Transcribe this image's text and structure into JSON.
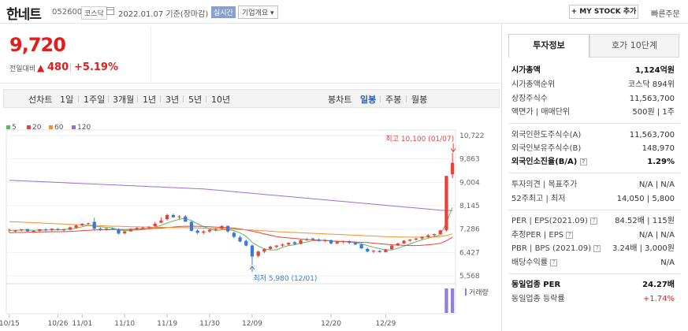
{
  "header": {
    "stock_name": "한네트",
    "stock_code": "052600",
    "market": "코스닥",
    "date_text": "2022.01.07 기준(장마감)",
    "realtime_btn": "실시간",
    "corp_info_btn": "기업개요",
    "corp_info_arrow": "▾",
    "my_stock_btn": "+ MY STOCK 추가",
    "quick_order": "빠른주문"
  },
  "price": {
    "current": "9,720",
    "prev_label": "전일대비",
    "arrow": "▲",
    "change_abs": "480",
    "change_pct": "+5.19%"
  },
  "period_tabs": {
    "line_chart": "선차트",
    "day1": "1일",
    "week1": "1주일",
    "month3": "3개월",
    "year1": "1년",
    "year3": "3년",
    "year5": "5년",
    "year10": "10년",
    "candle_chart": "봉차트",
    "daily": "일봉",
    "weekly": "주봉",
    "monthly": "월봉"
  },
  "legend": [
    {
      "label": "5",
      "color": "#5cb85c"
    },
    {
      "label": "20",
      "color": "#e8413b"
    },
    {
      "label": "60",
      "color": "#f2902e"
    },
    {
      "label": "120",
      "color": "#9b6fd0"
    }
  ],
  "chart_data": {
    "type": "candlestick",
    "y_ticks": [
      "10,722",
      "9,863",
      "9,004",
      "8,145",
      "7,286",
      "6,427",
      "5,568"
    ],
    "x_ticks": [
      "10/15",
      "10/26",
      "11/01",
      "11/10",
      "11/19",
      "11/30",
      "12/09",
      "12/20",
      "12/29"
    ],
    "high_annotation": "최고 10,100 (01/07)",
    "low_annotation": "최저 5,980 (12/01)",
    "volume_label": "거래량",
    "ylim": [
      5568,
      10722
    ],
    "up_color": "#e8413b",
    "down_color": "#3a78d8",
    "candles": [
      [
        7250,
        7300,
        7150,
        7260
      ],
      [
        7200,
        7260,
        7150,
        7240
      ],
      [
        7240,
        7280,
        7200,
        7280
      ],
      [
        7280,
        7300,
        7200,
        7200
      ],
      [
        7180,
        7240,
        7150,
        7220
      ],
      [
        7220,
        7280,
        7200,
        7280
      ],
      [
        7270,
        7320,
        7200,
        7260
      ],
      [
        7250,
        7300,
        7180,
        7300
      ],
      [
        7290,
        7320,
        7230,
        7250
      ],
      [
        7240,
        7300,
        7200,
        7270
      ],
      [
        7260,
        7380,
        7250,
        7350
      ],
      [
        7340,
        7450,
        7300,
        7420
      ],
      [
        7420,
        7500,
        7400,
        7480
      ],
      [
        7470,
        7520,
        7440,
        7500
      ],
      [
        7550,
        7700,
        7250,
        7300
      ],
      [
        7300,
        7350,
        7220,
        7260
      ],
      [
        7270,
        7320,
        7230,
        7310
      ],
      [
        7300,
        7340,
        7260,
        7280
      ],
      [
        7280,
        7320,
        7100,
        7120
      ],
      [
        7130,
        7220,
        7100,
        7200
      ],
      [
        7200,
        7310,
        7190,
        7290
      ],
      [
        7280,
        7350,
        7250,
        7330
      ],
      [
        7320,
        7380,
        7280,
        7340
      ],
      [
        7340,
        7390,
        7300,
        7370
      ],
      [
        7390,
        7550,
        7380,
        7480
      ],
      [
        7520,
        7720,
        7500,
        7600
      ],
      [
        7650,
        7850,
        7600,
        7800
      ],
      [
        7800,
        7850,
        7700,
        7720
      ],
      [
        7720,
        7800,
        7650,
        7750
      ],
      [
        7750,
        7800,
        7550,
        7560
      ],
      [
        7550,
        7580,
        7200,
        7220
      ],
      [
        7230,
        7280,
        7100,
        7150
      ],
      [
        7160,
        7240,
        7100,
        7200
      ],
      [
        7200,
        7280,
        7150,
        7260
      ],
      [
        7260,
        7320,
        7200,
        7290
      ],
      [
        7300,
        7420,
        7280,
        7400
      ],
      [
        7400,
        7420,
        7150,
        7200
      ],
      [
        7150,
        7200,
        6950,
        7000
      ],
      [
        6980,
        7050,
        6800,
        6830
      ],
      [
        6850,
        6900,
        6650,
        6680
      ],
      [
        6680,
        6720,
        5980,
        6280
      ],
      [
        6300,
        6500,
        6250,
        6460
      ],
      [
        6460,
        6580,
        6400,
        6550
      ],
      [
        6560,
        6680,
        6520,
        6640
      ],
      [
        6640,
        6700,
        6580,
        6680
      ],
      [
        6680,
        6760,
        6640,
        6720
      ],
      [
        6720,
        6800,
        6680,
        6780
      ],
      [
        6800,
        6850,
        6700,
        6740
      ],
      [
        6740,
        6900,
        6720,
        6880
      ],
      [
        6880,
        6960,
        6850,
        6920
      ],
      [
        6940,
        6970,
        6880,
        6900
      ],
      [
        6900,
        6940,
        6820,
        6850
      ],
      [
        6860,
        6920,
        6800,
        6880
      ],
      [
        6880,
        6900,
        6720,
        6760
      ],
      [
        6760,
        6850,
        6720,
        6820
      ],
      [
        6820,
        6860,
        6760,
        6840
      ],
      [
        6840,
        6880,
        6740,
        6780
      ],
      [
        6780,
        6820,
        6700,
        6720
      ],
      [
        6720,
        6760,
        6550,
        6580
      ],
      [
        6560,
        6600,
        6430,
        6460
      ],
      [
        6460,
        6520,
        6400,
        6490
      ],
      [
        6480,
        6520,
        6420,
        6440
      ],
      [
        6440,
        6560,
        6420,
        6540
      ],
      [
        6550,
        6700,
        6520,
        6680
      ],
      [
        6680,
        6780,
        6660,
        6760
      ],
      [
        6760,
        6880,
        6740,
        6860
      ],
      [
        6860,
        6920,
        6820,
        6900
      ],
      [
        6900,
        6960,
        6860,
        6940
      ],
      [
        6940,
        7020,
        6900,
        7000
      ],
      [
        7000,
        7100,
        6960,
        7060
      ],
      [
        7060,
        7120,
        6980,
        7100
      ],
      [
        7100,
        7260,
        7060,
        7240
      ],
      [
        7240,
        9240,
        7200,
        9240
      ],
      [
        9300,
        10100,
        9150,
        9720
      ]
    ],
    "ma5": [
      7240,
      7240,
      7250,
      7250,
      7240,
      7250,
      7250,
      7260,
      7260,
      7270,
      7290,
      7320,
      7370,
      7420,
      7390,
      7370,
      7350,
      7330,
      7250,
      7230,
      7240,
      7250,
      7270,
      7310,
      7360,
      7420,
      7510,
      7580,
      7650,
      7680,
      7600,
      7480,
      7380,
      7290,
      7230,
      7260,
      7270,
      7230,
      7150,
      7020,
      6800,
      6660,
      6560,
      6520,
      6520,
      6620,
      6680,
      6710,
      6770,
      6810,
      6860,
      6870,
      6880,
      6850,
      6830,
      6830,
      6810,
      6790,
      6740,
      6680,
      6620,
      6570,
      6520,
      6520,
      6580,
      6660,
      6740,
      6820,
      6890,
      6950,
      7010,
      7070,
      7520,
      8080
    ],
    "ma20": [
      7150,
      7160,
      7160,
      7170,
      7170,
      7180,
      7180,
      7190,
      7190,
      7190,
      7200,
      7210,
      7230,
      7240,
      7250,
      7260,
      7260,
      7270,
      7270,
      7270,
      7280,
      7280,
      7290,
      7300,
      7310,
      7320,
      7340,
      7360,
      7380,
      7390,
      7390,
      7390,
      7380,
      7370,
      7360,
      7350,
      7340,
      7320,
      7290,
      7250,
      7210,
      7160,
      7110,
      7060,
      7010,
      6980,
      6960,
      6940,
      6920,
      6900,
      6890,
      6880,
      6860,
      6850,
      6840,
      6830,
      6820,
      6810,
      6800,
      6790,
      6770,
      6750,
      6730,
      6710,
      6700,
      6690,
      6680,
      6680,
      6690,
      6710,
      6730,
      6760,
      6860,
      6980
    ],
    "ma60": [
      7560,
      7550,
      7540,
      7530,
      7520,
      7510,
      7500,
      7490,
      7480,
      7470,
      7460,
      7450,
      7440,
      7430,
      7420,
      7410,
      7400,
      7390,
      7390,
      7380,
      7370,
      7370,
      7360,
      7360,
      7350,
      7350,
      7350,
      7340,
      7340,
      7340,
      7330,
      7330,
      7320,
      7310,
      7310,
      7300,
      7290,
      7280,
      7270,
      7260,
      7250,
      7230,
      7220,
      7210,
      7190,
      7180,
      7170,
      7160,
      7150,
      7140,
      7130,
      7120,
      7110,
      7100,
      7090,
      7080,
      7070,
      7060,
      7050,
      7040,
      7030,
      7020,
      7010,
      7000,
      6995,
      6990,
      6990,
      6990,
      6990,
      6995,
      7000,
      7010,
      7050,
      7110
    ],
    "ma120": [
      9080,
      9070,
      9060,
      9050,
      9040,
      9030,
      9020,
      9010,
      9000,
      8990,
      8980,
      8970,
      8960,
      8950,
      8940,
      8930,
      8920,
      8910,
      8900,
      8890,
      8880,
      8870,
      8860,
      8850,
      8840,
      8830,
      8820,
      8810,
      8800,
      8790,
      8780,
      8770,
      8760,
      8740,
      8720,
      8700,
      8680,
      8660,
      8640,
      8620,
      8600,
      8580,
      8560,
      8540,
      8520,
      8500,
      8480,
      8460,
      8440,
      8420,
      8400,
      8380,
      8360,
      8340,
      8320,
      8300,
      8280,
      8260,
      8240,
      8220,
      8200,
      8180,
      8160,
      8140,
      8120,
      8100,
      8080,
      8060,
      8040,
      8020,
      8000,
      7980,
      7970,
      7960
    ],
    "volume": [
      0,
      0,
      0,
      0,
      0,
      0,
      0,
      0,
      0,
      0,
      0,
      0,
      0,
      0,
      0,
      0,
      0,
      0,
      0,
      0,
      0,
      0,
      0,
      0,
      0,
      0,
      0,
      0,
      0,
      0,
      0,
      0,
      0,
      0,
      0,
      0,
      0,
      0,
      0,
      0,
      0,
      0,
      0,
      0,
      0,
      0,
      0,
      0,
      0,
      0,
      0,
      0,
      0,
      0,
      0,
      0,
      0,
      0,
      0,
      0,
      0,
      0,
      0,
      0,
      0,
      0,
      0,
      0,
      0,
      0,
      0,
      0,
      100,
      100
    ]
  },
  "invest_tabs": {
    "invest_info": "투자정보",
    "hoga": "호가 10단계"
  },
  "invest": {
    "market_cap_label": "시가총액",
    "market_cap": "1,124억원",
    "market_cap_rank_label": "시가총액순위",
    "market_cap_rank": "코스닥 894위",
    "shares_label": "상장주식수",
    "shares": "11,563,700",
    "face_value_label": "액면가 | 매매단위",
    "face_value": "500원 | 1주",
    "foreign_limit_label": "외국인한도주식수(A)",
    "foreign_limit": "11,563,700",
    "foreign_hold_label": "외국인보유주식수(B)",
    "foreign_hold": "148,970",
    "foreign_ratio_label": "외국인소진율(B/A)",
    "foreign_ratio": "1.29%",
    "opinion_label": "투자의견 | 목표주가",
    "opinion": "N/A | N/A",
    "week52_label": "52주최고 | 최저",
    "week52": "14,050 | 5,800",
    "per_label": "PER | EPS(2021.09)",
    "per": "84.52배 | 115원",
    "est_per_label": "추정PER | EPS",
    "est_per": "N/A | N/A",
    "pbr_label": "PBR | BPS (2021.09)",
    "pbr": "3.24배 | 3,000원",
    "dividend_label": "배당수익률",
    "dividend": "N/A",
    "sector_per_label": "동일업종 PER",
    "sector_per": "24.27배",
    "sector_rate_label": "동일업종 등락률",
    "sector_rate": "+1.74%"
  }
}
